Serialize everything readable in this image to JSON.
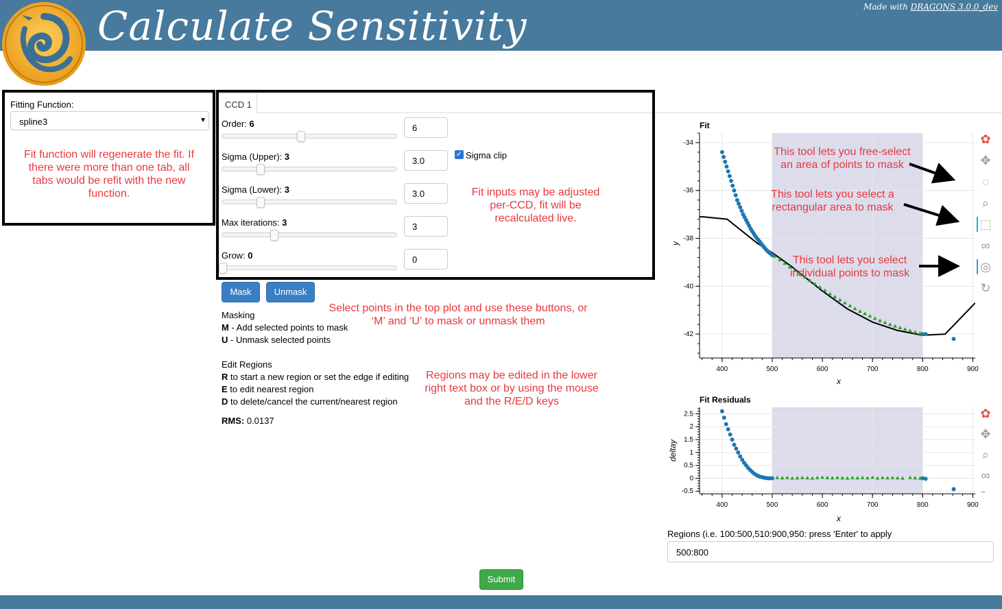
{
  "header": {
    "title": "Calculate Sensitivity"
  },
  "footer": {
    "prefix": "Made with ",
    "link": "DRAGONS 3.0.0_dev"
  },
  "left_panel": {
    "label": "Fitting Function:",
    "selected": "spline3",
    "note": "Fit function will regenerate the fit. If there were more than one tab, all tabs would be refit with the new function."
  },
  "tabs": [
    {
      "label": "CCD 1"
    }
  ],
  "params": {
    "order": {
      "label": "Order:",
      "value": "6",
      "input": "6",
      "fraction": 0.45
    },
    "sigma_upper": {
      "label": "Sigma (Upper):",
      "value": "3",
      "input": "3.0",
      "fraction": 0.22
    },
    "sigma_lower": {
      "label": "Sigma (Lower):",
      "value": "3",
      "input": "3.0",
      "fraction": 0.22
    },
    "max_iter": {
      "label": "Max iterations:",
      "value": "3",
      "input": "3",
      "fraction": 0.28
    },
    "grow": {
      "label": "Grow:",
      "value": "0",
      "input": "0",
      "fraction": 0.0
    },
    "sigma_clip": {
      "label": "Sigma clip",
      "checked": true
    }
  },
  "notes": {
    "fit_inputs": "Fit inputs may be adjusted per-CCD, fit will be recalculated live.",
    "select_points": "Select points in the top plot and use these buttons, or ‘M’ and ‘U’ to mask or unmask them",
    "regions_note": "Regions may be edited in the lower right text box or by using the mouse and the R/E/D keys",
    "free_select": "This tool lets you free-select an area of points to mask",
    "rect_select": "This tool lets you select a rectangular area to mask",
    "point_select": "This tool lets you select individual points to mask"
  },
  "buttons": {
    "mask": "Mask",
    "unmask": "Unmask",
    "submit": "Submit"
  },
  "masking": {
    "title": "Masking",
    "m_key": "M",
    "m_text": " - Add selected points to mask",
    "u_key": "U",
    "u_text": " - Unmask selected points"
  },
  "edit_regions": {
    "title": "Edit Regions",
    "r_key": "R",
    "r_text": " to start a new region or set the edge if editing",
    "e_key": "E",
    "e_text": " to edit nearest region",
    "d_key": "D",
    "d_text": " to delete/cancel the current/nearest region"
  },
  "rms": {
    "label": "RMS:",
    "value": "0.0137"
  },
  "regions": {
    "label": "Regions (i.e. 100:500,510:900,950: press 'Enter' to apply",
    "value": "500:800"
  },
  "chart_data": [
    {
      "type": "scatter",
      "title": "Fit",
      "xlabel": "x",
      "ylabel": "y",
      "xlim": [
        355,
        905
      ],
      "ylim": [
        -43.0,
        -33.6
      ],
      "xticks": [
        400,
        500,
        600,
        700,
        800,
        900
      ],
      "yticks": [
        -34,
        -36,
        -38,
        -40,
        -42
      ],
      "region": [
        500,
        800
      ],
      "colors": {
        "points": "#1f77b4",
        "masked": "#2ca02c",
        "fit": "#000000",
        "region": "#dcdcec"
      },
      "fit_line": {
        "x": [
          355,
          362,
          410,
          470,
          500,
          540,
          600,
          650,
          700,
          750,
          800,
          845,
          905
        ],
        "y": [
          -37.1,
          -37.1,
          -37.2,
          -38.2,
          -38.6,
          -39.2,
          -40.2,
          -40.95,
          -41.5,
          -41.85,
          -42.05,
          -42.0,
          -40.7
        ]
      },
      "series": [
        {
          "x": [
            400,
            403,
            406,
            409,
            412,
            415,
            418,
            421,
            424,
            427,
            430,
            433,
            436,
            439,
            442,
            445,
            448,
            451,
            454,
            457,
            460,
            463,
            466,
            469,
            472,
            475,
            478,
            481,
            484,
            487,
            490,
            493,
            496,
            500
          ],
          "y": [
            -34.4,
            -34.6,
            -34.8,
            -35.0,
            -35.2,
            -35.4,
            -35.6,
            -35.8,
            -36.0,
            -36.2,
            -36.4,
            -36.55,
            -36.7,
            -36.85,
            -37.0,
            -37.12,
            -37.24,
            -37.36,
            -37.48,
            -37.6,
            -37.7,
            -37.8,
            -37.9,
            -37.98,
            -38.06,
            -38.14,
            -38.22,
            -38.3,
            -38.38,
            -38.45,
            -38.52,
            -38.58,
            -38.63,
            -38.7
          ]
        },
        {
          "x": [
            800,
            806,
            862
          ],
          "y": [
            -42.0,
            -42.0,
            -42.2
          ]
        },
        {
          "x": [
            505,
            515,
            525,
            535,
            545,
            555,
            565,
            575,
            585,
            595,
            605,
            615,
            625,
            635,
            645,
            655,
            665,
            675,
            685,
            695,
            705,
            715,
            725,
            735,
            745,
            755,
            765,
            775,
            785,
            795
          ],
          "y": [
            -38.75,
            -38.9,
            -39.05,
            -39.2,
            -39.34,
            -39.48,
            -39.62,
            -39.76,
            -39.9,
            -40.04,
            -40.18,
            -40.32,
            -40.45,
            -40.58,
            -40.7,
            -40.82,
            -40.94,
            -41.05,
            -41.15,
            -41.25,
            -41.35,
            -41.44,
            -41.52,
            -41.6,
            -41.67,
            -41.74,
            -41.8,
            -41.86,
            -41.92,
            -41.97
          ]
        }
      ]
    },
    {
      "type": "scatter",
      "title": "Fit Residuals",
      "xlabel": "x",
      "ylabel": "deltay",
      "xlim": [
        355,
        905
      ],
      "ylim": [
        -0.6,
        2.75
      ],
      "xticks": [
        400,
        500,
        600,
        700,
        800,
        900
      ],
      "yticks": [
        2.5,
        2,
        1.5,
        1,
        0.5,
        0,
        -0.5
      ],
      "ytick_labels": [
        "2.5",
        "2",
        "1.5",
        "1",
        "0.5",
        "0",
        "-0.5"
      ],
      "region": [
        500,
        800
      ],
      "series": [
        {
          "x": [
            400,
            404,
            408,
            412,
            416,
            420,
            424,
            428,
            432,
            436,
            440,
            444,
            448,
            452,
            456,
            460,
            464,
            468,
            472,
            476,
            480,
            484,
            488,
            492,
            496,
            500
          ],
          "y": [
            2.6,
            2.35,
            2.1,
            1.9,
            1.7,
            1.5,
            1.3,
            1.15,
            1.0,
            0.85,
            0.72,
            0.6,
            0.5,
            0.4,
            0.32,
            0.25,
            0.18,
            0.13,
            0.09,
            0.06,
            0.04,
            0.02,
            0.01,
            0.0,
            0.0,
            0.0
          ]
        },
        {
          "x": [
            800,
            806,
            862
          ],
          "y": [
            0.0,
            -0.02,
            -0.42
          ]
        },
        {
          "x": [
            510,
            520,
            530,
            540,
            550,
            560,
            570,
            580,
            590,
            600,
            610,
            620,
            630,
            640,
            650,
            660,
            670,
            680,
            690,
            700,
            710,
            720,
            730,
            740,
            750,
            760,
            775,
            785,
            795
          ],
          "y": [
            0.02,
            0.01,
            0.02,
            0.0,
            0.01,
            0.02,
            0.01,
            0.0,
            0.02,
            0.03,
            0.02,
            0.01,
            0.02,
            0.01,
            0.0,
            0.02,
            0.01,
            0.02,
            0.01,
            0.03,
            0.0,
            0.02,
            0.01,
            0.02,
            0.01,
            0.0,
            0.02,
            0.01,
            0.0
          ]
        }
      ]
    }
  ]
}
